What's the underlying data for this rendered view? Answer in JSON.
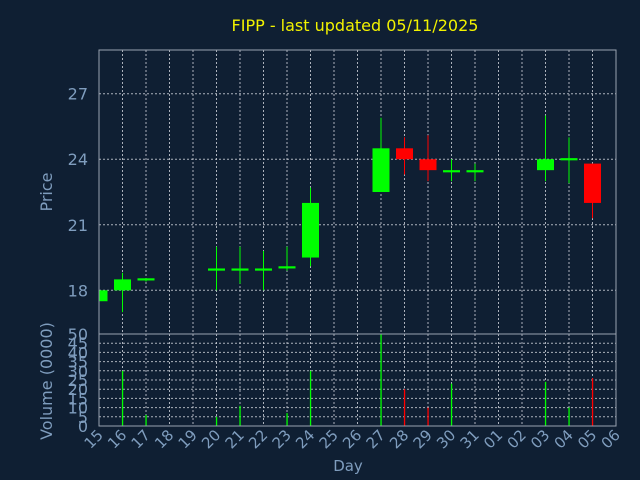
{
  "chart_data": [
    {
      "type": "candlestick",
      "title": "FIPP - last updated 05/11/2025",
      "ylabel": "Price",
      "ylim": [
        16,
        29
      ],
      "yticks": [
        18,
        21,
        24,
        27
      ],
      "up_color": "#00ff00",
      "down_color": "#ff0000",
      "grid": true,
      "categories": [
        "15",
        "16",
        "17",
        "18",
        "19",
        "20",
        "21",
        "22",
        "23",
        "24",
        "25",
        "26",
        "27",
        "28",
        "29",
        "30",
        "31",
        "01",
        "02",
        "03",
        "04",
        "05",
        "06"
      ],
      "candles": [
        {
          "day": "15",
          "open": 17.5,
          "high": 18.0,
          "low": 17.5,
          "close": 18.0
        },
        {
          "day": "16",
          "open": 18.0,
          "high": 18.8,
          "low": 17.0,
          "close": 18.5
        },
        {
          "day": "17",
          "open": 18.45,
          "high": 18.55,
          "low": 18.4,
          "close": 18.55
        },
        {
          "day": "20",
          "open": 18.9,
          "high": 20.0,
          "low": 18.0,
          "close": 19.0
        },
        {
          "day": "21",
          "open": 18.9,
          "high": 20.0,
          "low": 18.3,
          "close": 19.0
        },
        {
          "day": "22",
          "open": 18.9,
          "high": 19.8,
          "low": 18.0,
          "close": 19.0
        },
        {
          "day": "23",
          "open": 19.0,
          "high": 20.0,
          "low": 18.9,
          "close": 19.1
        },
        {
          "day": "24",
          "open": 19.5,
          "high": 22.7,
          "low": 19.1,
          "close": 22.0
        },
        {
          "day": "27",
          "open": 22.5,
          "high": 25.9,
          "low": 22.5,
          "close": 24.5
        },
        {
          "day": "28",
          "open": 24.5,
          "high": 25.0,
          "low": 23.3,
          "close": 24.0
        },
        {
          "day": "29",
          "open": 24.0,
          "high": 25.1,
          "low": 23.0,
          "close": 23.5
        },
        {
          "day": "30",
          "open": 23.4,
          "high": 24.0,
          "low": 23.0,
          "close": 23.5
        },
        {
          "day": "31",
          "open": 23.4,
          "high": 23.8,
          "low": 23.0,
          "close": 23.5
        },
        {
          "day": "03",
          "open": 23.5,
          "high": 26.0,
          "low": 23.0,
          "close": 24.0
        },
        {
          "day": "04",
          "open": 23.95,
          "high": 25.0,
          "low": 22.9,
          "close": 24.05
        },
        {
          "day": "05",
          "open": 23.8,
          "high": 23.8,
          "low": 21.3,
          "close": 22.0
        }
      ]
    },
    {
      "type": "bar",
      "ylabel": "Volume (0000)",
      "xlabel": "Day",
      "ylim": [
        0,
        50
      ],
      "yticks": [
        0,
        5,
        10,
        15,
        20,
        25,
        30,
        35,
        40,
        45,
        50
      ],
      "categories": [
        "15",
        "16",
        "17",
        "18",
        "19",
        "20",
        "21",
        "22",
        "23",
        "24",
        "25",
        "26",
        "27",
        "28",
        "29",
        "30",
        "31",
        "01",
        "02",
        "03",
        "04",
        "05",
        "06"
      ],
      "volumes": [
        {
          "day": "16",
          "value": 30,
          "color": "#00ff00"
        },
        {
          "day": "17",
          "value": 6,
          "color": "#00ff00"
        },
        {
          "day": "20",
          "value": 5,
          "color": "#00ff00"
        },
        {
          "day": "21",
          "value": 11,
          "color": "#00ff00"
        },
        {
          "day": "23",
          "value": 7,
          "color": "#00ff00"
        },
        {
          "day": "24",
          "value": 30,
          "color": "#00ff00"
        },
        {
          "day": "27",
          "value": 50,
          "color": "#00ff00"
        },
        {
          "day": "28",
          "value": 20,
          "color": "#ff0000"
        },
        {
          "day": "29",
          "value": 10,
          "color": "#ff0000"
        },
        {
          "day": "30",
          "value": 23,
          "color": "#00ff00"
        },
        {
          "day": "03",
          "value": 24,
          "color": "#00ff00"
        },
        {
          "day": "04",
          "value": 10,
          "color": "#00ff00"
        },
        {
          "day": "05",
          "value": 26,
          "color": "#ff0000"
        }
      ]
    }
  ]
}
